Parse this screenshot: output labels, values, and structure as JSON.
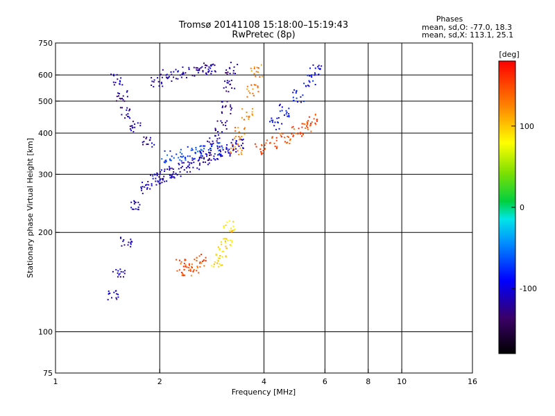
{
  "chart_data": {
    "type": "scatter",
    "title": "Tromsø 20141108 15:18:00–15:19:43",
    "subtitle": "RwPretec (8p)",
    "xlabel": "Frequency [MHz]",
    "ylabel": "Stationary phase Virtual Height [km]",
    "x_scale": "log",
    "y_scale": "log",
    "xlim": [
      1,
      16
    ],
    "ylim": [
      75,
      750
    ],
    "x_ticks": [
      1,
      2,
      4,
      6,
      8,
      10,
      16
    ],
    "x_tick_labels": [
      "1",
      "2",
      "4",
      "6",
      "8",
      "10",
      "16"
    ],
    "y_ticks": [
      75,
      100,
      200,
      300,
      400,
      500,
      600,
      750
    ],
    "y_tick_labels": [
      "75",
      "100",
      "200",
      "300",
      "400",
      "500",
      "600",
      "750"
    ],
    "x_gridlines": [
      2,
      4,
      6,
      8,
      10
    ],
    "y_gridlines": [
      100,
      200,
      300,
      400,
      500,
      600
    ],
    "phases": {
      "title": "Phases",
      "o_line": "mean, sd,O: -77.0, 18.3",
      "x_line": "mean, sd,X: 113.1, 25.1"
    },
    "colorbar": {
      "unit": "[deg]",
      "range": [
        -180,
        180
      ],
      "ticks": [
        100,
        0,
        -100
      ],
      "tick_labels": [
        "100",
        "0",
        "-100"
      ],
      "colormap": "rainbow"
    },
    "traces": [
      {
        "x": [
          1.45,
          1.52,
          1.6,
          1.7,
          1.8,
          1.92,
          2.0,
          2.1,
          2.2,
          2.35,
          2.5,
          2.7,
          2.9,
          3.05,
          3.2,
          3.35
        ],
        "y": [
          130,
          150,
          190,
          240,
          275,
          290,
          295,
          300,
          305,
          315,
          325,
          335,
          345,
          355,
          365,
          370
        ],
        "phase": -110
      },
      {
        "x": [
          1.5,
          1.55,
          1.6,
          1.7,
          1.85
        ],
        "y": [
          580,
          520,
          460,
          420,
          380
        ],
        "phase": -115
      },
      {
        "x": [
          1.95,
          2.1,
          2.3,
          2.5,
          2.7,
          2.8
        ],
        "y": [
          580,
          600,
          610,
          620,
          630,
          640
        ],
        "phase": -115
      },
      {
        "x": [
          2.7,
          2.85,
          3.0,
          3.1,
          3.15,
          3.2
        ],
        "y": [
          340,
          380,
          420,
          480,
          560,
          630
        ],
        "phase": -120
      },
      {
        "x": [
          2.1,
          2.3,
          2.5,
          2.7,
          2.9
        ],
        "y": [
          340,
          345,
          350,
          355,
          360
        ],
        "phase": -70
      },
      {
        "x": [
          3.3,
          3.4,
          3.55,
          3.7,
          3.8
        ],
        "y": [
          360,
          400,
          460,
          540,
          620
        ],
        "phase": 130
      },
      {
        "x": [
          3.9,
          4.2,
          4.6,
          5.0,
          5.3,
          5.5
        ],
        "y": [
          360,
          375,
          390,
          405,
          420,
          440
        ],
        "phase": 150
      },
      {
        "x": [
          4.3,
          4.6,
          5.0,
          5.4,
          5.6
        ],
        "y": [
          430,
          470,
          520,
          580,
          620
        ],
        "phase": -90
      },
      {
        "x": [
          2.3,
          2.4,
          2.5,
          2.6
        ],
        "y": [
          160,
          155,
          158,
          165
        ],
        "phase": 145
      },
      {
        "x": [
          2.9,
          3.0,
          3.1,
          3.15
        ],
        "y": [
          165,
          175,
          190,
          210
        ],
        "phase": 95
      }
    ]
  }
}
